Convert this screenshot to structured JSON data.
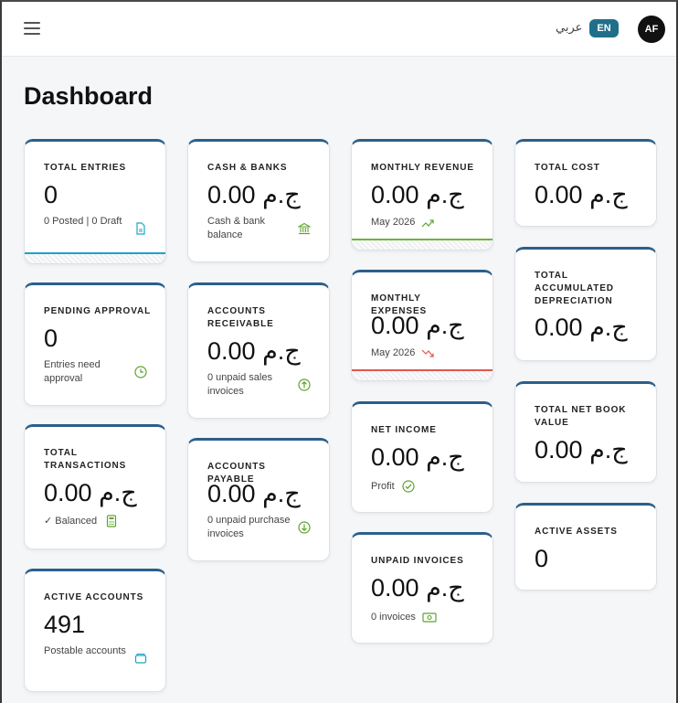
{
  "header": {
    "lang_ar": "عربي",
    "lang_en": "EN",
    "avatar": "AF"
  },
  "page_title": "Dashboard",
  "cards": {
    "total_entries": {
      "label": "TOTAL ENTRIES",
      "value": "0",
      "sub": "0 Posted | 0 Draft",
      "icon": "document-icon"
    },
    "pending_approval": {
      "label": "PENDING APPROVAL",
      "value": "0",
      "sub": "Entries need approval",
      "icon": "clock-icon"
    },
    "total_transactions": {
      "label": "TOTAL TRANSACTIONS",
      "value": "0.00 ج.م",
      "sub": "✓ Balanced",
      "icon": "calculator-icon"
    },
    "active_accounts": {
      "label": "ACTIVE ACCOUNTS",
      "value": "491",
      "sub": "Postable accounts",
      "icon": "folder-icon"
    },
    "cash_banks": {
      "label": "CASH & BANKS",
      "value": "0.00 ج.م",
      "sub": "Cash & bank balance",
      "icon": "bank-icon"
    },
    "accounts_receivable": {
      "label": "ACCOUNTS RECEIVABLE",
      "value": "0.00 ج.م",
      "sub": "0 unpaid sales invoices",
      "icon": "arrow-up-circle-icon"
    },
    "accounts_payable": {
      "label": "ACCOUNTS PAYABLE",
      "value": "0.00 ج.م",
      "sub": "0 unpaid purchase invoices",
      "icon": "arrow-down-circle-icon"
    },
    "monthly_revenue": {
      "label": "MONTHLY REVENUE",
      "value": "0.00 ج.م",
      "sub": "May 2026",
      "icon": "trend-up-icon"
    },
    "monthly_expenses": {
      "label": "MONTHLY EXPENSES",
      "value": "0.00 ج.م",
      "sub": "May 2026",
      "icon": "trend-down-icon"
    },
    "net_income": {
      "label": "NET INCOME",
      "value": "0.00 ج.م",
      "sub": "Profit",
      "icon": "check-circle-icon"
    },
    "unpaid_invoices": {
      "label": "UNPAID INVOICES",
      "value": "0.00 ج.م",
      "sub": "0 invoices",
      "icon": "cash-icon"
    },
    "total_cost": {
      "label": "TOTAL COST",
      "value": "0.00 ج.م"
    },
    "total_accumulated_depreciation": {
      "label": "TOTAL ACCUMULATED DEPRECIATION",
      "value": "0.00 ج.م"
    },
    "total_net_book_value": {
      "label": "TOTAL NET BOOK VALUE",
      "value": "0.00 ج.م"
    },
    "active_assets": {
      "label": "ACTIVE ASSETS",
      "value": "0"
    }
  },
  "colors": {
    "accent": "#1f6f8b",
    "card_top": "#2c5f8a",
    "blue_line": "#1fa3c6",
    "green": "#6fb33b",
    "red": "#e0574e",
    "icon_green": "#5ea32d"
  }
}
